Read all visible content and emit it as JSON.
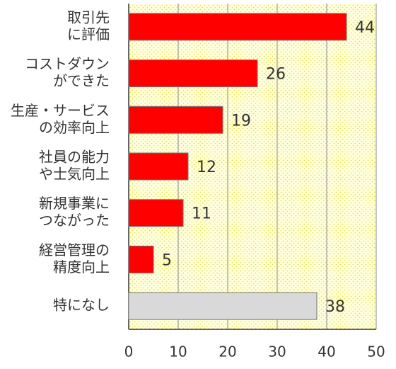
{
  "chart_data": {
    "type": "barh",
    "categories": [
      [
        "取引先",
        "に評価"
      ],
      [
        "コストダウン",
        "ができた"
      ],
      [
        "生産・サービス",
        "の効率向上"
      ],
      [
        "社員の能力",
        "や士気向上"
      ],
      [
        "新規事業に",
        "つながった"
      ],
      [
        "経営管理の",
        "精度向上"
      ],
      [
        "特になし"
      ]
    ],
    "values": [
      44,
      26,
      19,
      12,
      11,
      5,
      38
    ],
    "colors": [
      "#ff0000",
      "#ff0000",
      "#ff0000",
      "#ff0000",
      "#ff0000",
      "#ff0000",
      "#d9d9d9"
    ],
    "xlim": [
      0,
      50
    ],
    "xticks": [
      0,
      10,
      20,
      30,
      40,
      50
    ],
    "grid": true
  }
}
